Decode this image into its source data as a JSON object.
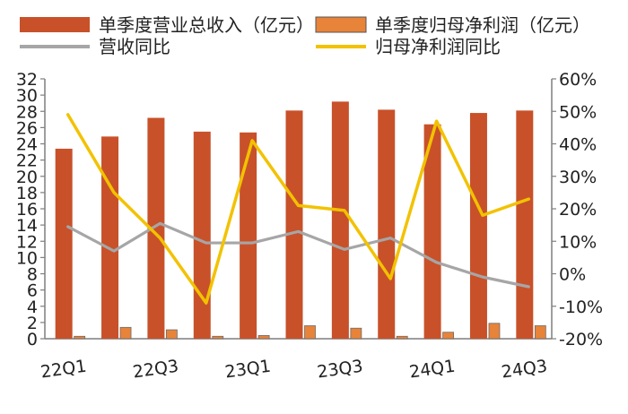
{
  "chart_data": {
    "type": "bar",
    "categories": [
      "22Q1",
      "22Q2",
      "22Q3",
      "22Q4",
      "23Q1",
      "23Q2",
      "23Q3",
      "23Q4",
      "24Q1",
      "24Q2",
      "24Q3"
    ],
    "x_tick_labels": [
      "22Q1",
      "22Q3",
      "23Q1",
      "23Q3",
      "24Q1",
      "24Q3"
    ],
    "series": [
      {
        "name": "单季度营业总收入（亿元）",
        "kind": "bar",
        "axis": "left",
        "color": "#C8512A",
        "values": [
          23.4,
          24.9,
          27.2,
          25.5,
          25.4,
          28.1,
          29.2,
          28.2,
          26.4,
          27.8,
          28.1
        ]
      },
      {
        "name": "单季度归母净利润（亿元）",
        "kind": "bar",
        "axis": "left",
        "color": "#E8833A",
        "values": [
          0.3,
          1.4,
          1.1,
          0.3,
          0.4,
          1.6,
          1.3,
          0.3,
          0.8,
          1.9,
          1.6
        ]
      },
      {
        "name": "营收同比",
        "kind": "line",
        "axis": "right",
        "color": "#A6A6A6",
        "values": [
          14.5,
          7,
          15.5,
          9.5,
          9.5,
          13,
          7.5,
          11,
          3.5,
          -1,
          -4
        ]
      },
      {
        "name": "归母净利润同比",
        "kind": "line",
        "axis": "right",
        "color": "#F2C200",
        "values": [
          49,
          25,
          11,
          -9,
          41,
          21,
          19.5,
          -1.5,
          47,
          18,
          23
        ]
      }
    ],
    "y_left": {
      "min": 0,
      "max": 32,
      "step": 2,
      "ticks": [
        "0",
        "2",
        "4",
        "6",
        "8",
        "10",
        "12",
        "14",
        "16",
        "18",
        "20",
        "22",
        "24",
        "26",
        "28",
        "30",
        "32"
      ]
    },
    "y_right": {
      "min": -20,
      "max": 60,
      "step": 10,
      "ticks": [
        "-20%",
        "-10%",
        "0%",
        "10%",
        "20%",
        "30%",
        "40%",
        "50%",
        "60%"
      ]
    },
    "legend_position": "top",
    "grid": false,
    "colors": {
      "revenue": "#C8512A",
      "profit": "#E8833A",
      "revenue_yoy": "#A6A6A6",
      "profit_yoy": "#F2C200",
      "axis": "#7F7F7F"
    }
  }
}
